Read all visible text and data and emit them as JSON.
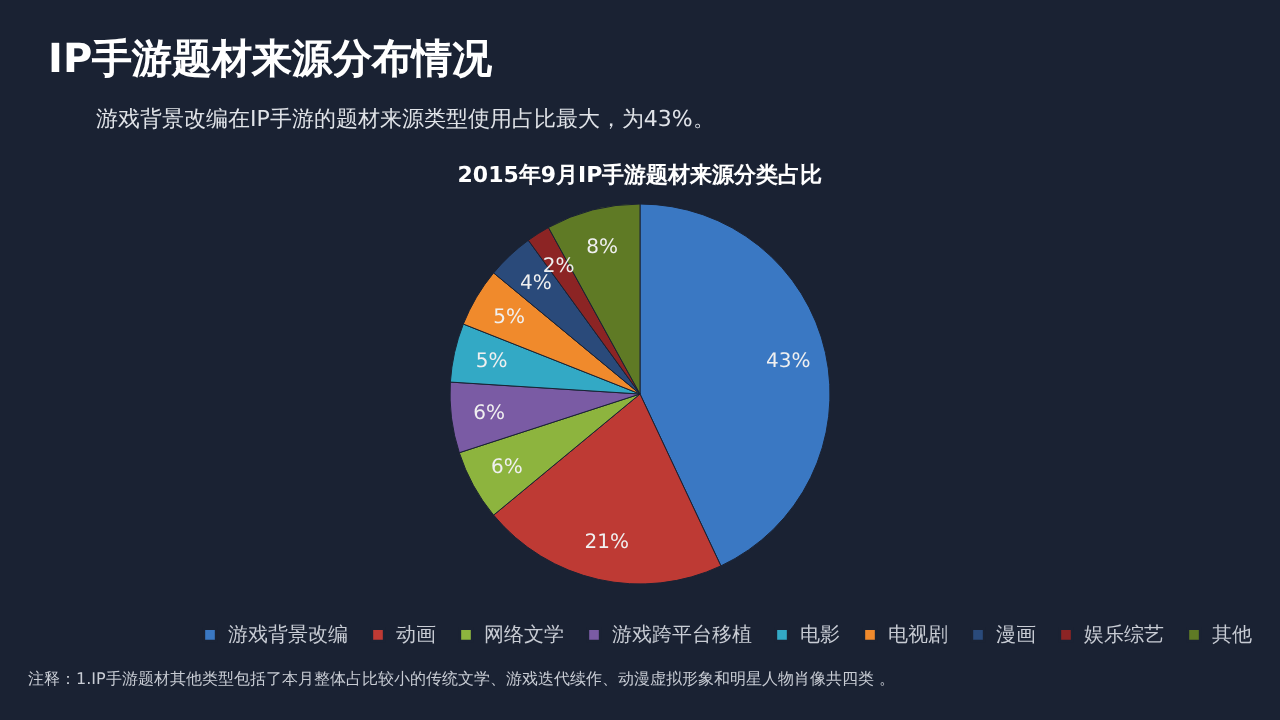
{
  "chart_data": {
    "type": "pie",
    "title": "IP手游题材来源分布情况",
    "subtitle": "游戏背景改编在IP手游的题材来源类型使用占比最大，为43%。",
    "annotations": [
      "2015年9月IP手游题材来源分类占比",
      "注释：1.IP手游题材其他类型包括了本月整体占比较小的传统文学、游戏迭代续作、动漫虚拟形象和明星人物肖像共四类 。"
    ],
    "categories": [
      "游戏背景改编",
      "动画",
      "网络文学",
      "游戏跨平台移植",
      "电影",
      "电视剧",
      "漫画",
      "娱乐综艺",
      "其他"
    ],
    "values": [
      43,
      21,
      6,
      6,
      5,
      5,
      4,
      2,
      8
    ],
    "colors": [
      "#3a78c3",
      "#be3a34",
      "#8db43e",
      "#7a5ba4",
      "#33a9c5",
      "#f08a2c",
      "#2a4a7a",
      "#8c2424",
      "#5f7a25"
    ],
    "value_labels": [
      "43%",
      "21%",
      "6%",
      "6%",
      "5%",
      "5%",
      "4%",
      "2%",
      "8%"
    ],
    "legend": "bottom"
  }
}
